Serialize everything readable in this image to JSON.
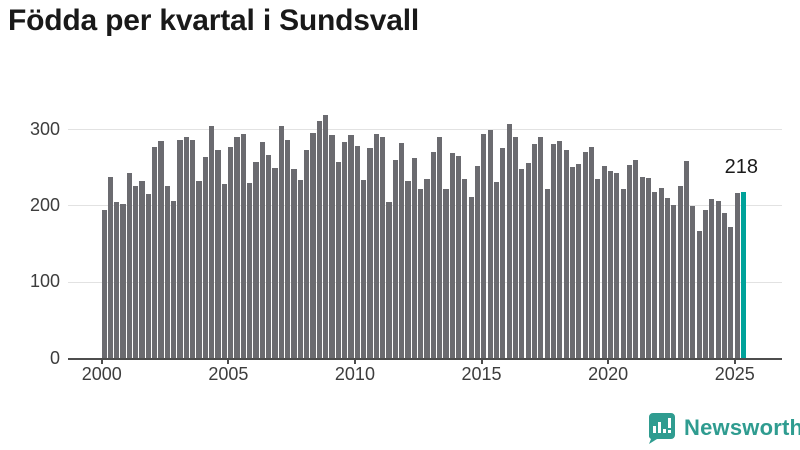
{
  "title": "Födda per kvartal i Sundsvall",
  "chart_data": {
    "type": "bar",
    "title": "Födda per kvartal i Sundsvall",
    "xlabel": "",
    "ylabel": "",
    "ylim": [
      0,
      325
    ],
    "yticks": [
      0,
      100,
      200,
      300
    ],
    "xticks": [
      "2000",
      "2005",
      "2010",
      "2015",
      "2020",
      "2025"
    ],
    "grid": "horizontal",
    "x": [
      "2000 Q1",
      "2000 Q2",
      "2000 Q3",
      "2000 Q4",
      "2001 Q1",
      "2001 Q2",
      "2001 Q3",
      "2001 Q4",
      "2002 Q1",
      "2002 Q2",
      "2002 Q3",
      "2002 Q4",
      "2003 Q1",
      "2003 Q2",
      "2003 Q3",
      "2003 Q4",
      "2004 Q1",
      "2004 Q2",
      "2004 Q3",
      "2004 Q4",
      "2005 Q1",
      "2005 Q2",
      "2005 Q3",
      "2005 Q4",
      "2006 Q1",
      "2006 Q2",
      "2006 Q3",
      "2006 Q4",
      "2007 Q1",
      "2007 Q2",
      "2007 Q3",
      "2007 Q4",
      "2008 Q1",
      "2008 Q2",
      "2008 Q3",
      "2008 Q4",
      "2009 Q1",
      "2009 Q2",
      "2009 Q3",
      "2009 Q4",
      "2010 Q1",
      "2010 Q2",
      "2010 Q3",
      "2010 Q4",
      "2011 Q1",
      "2011 Q2",
      "2011 Q3",
      "2011 Q4",
      "2012 Q1",
      "2012 Q2",
      "2012 Q3",
      "2012 Q4",
      "2013 Q1",
      "2013 Q2",
      "2013 Q3",
      "2013 Q4",
      "2014 Q1",
      "2014 Q2",
      "2014 Q3",
      "2014 Q4",
      "2015 Q1",
      "2015 Q2",
      "2015 Q3",
      "2015 Q4",
      "2016 Q1",
      "2016 Q2",
      "2016 Q3",
      "2016 Q4",
      "2017 Q1",
      "2017 Q2",
      "2017 Q3",
      "2017 Q4",
      "2018 Q1",
      "2018 Q2",
      "2018 Q3",
      "2018 Q4",
      "2019 Q1",
      "2019 Q2",
      "2019 Q3",
      "2019 Q4",
      "2020 Q1",
      "2020 Q2",
      "2020 Q3",
      "2020 Q4",
      "2021 Q1",
      "2021 Q2",
      "2021 Q3",
      "2021 Q4",
      "2022 Q1",
      "2022 Q2",
      "2022 Q3",
      "2022 Q4",
      "2023 Q1",
      "2023 Q2",
      "2023 Q3",
      "2023 Q4",
      "2024 Q1",
      "2024 Q2",
      "2024 Q3",
      "2024 Q4",
      "2025 Q1",
      "2025 Q2"
    ],
    "values": [
      194,
      237,
      205,
      202,
      242,
      225,
      232,
      215,
      276,
      284,
      226,
      206,
      285,
      290,
      285,
      232,
      263,
      304,
      272,
      228,
      276,
      289,
      293,
      229,
      257,
      283,
      266,
      249,
      304,
      286,
      247,
      233,
      273,
      295,
      311,
      318,
      292,
      257,
      283,
      292,
      278,
      233,
      275,
      294,
      290,
      205,
      259,
      282,
      232,
      262,
      221,
      234,
      270,
      289,
      222,
      268,
      265,
      235,
      211,
      251,
      294,
      299,
      231,
      275,
      306,
      290,
      248,
      256,
      281,
      289,
      221,
      281,
      284,
      273,
      250,
      254,
      270,
      276,
      234,
      252,
      245,
      242,
      221,
      253,
      259,
      237,
      236,
      218,
      223,
      209,
      201,
      225,
      258,
      199,
      166,
      194,
      208,
      206,
      190,
      171,
      216,
      218
    ],
    "colors": {
      "bar": "#6b6b70",
      "highlight": "#00a29a"
    },
    "highlight_index": 101,
    "annotation": {
      "text": "218"
    }
  },
  "logo": {
    "text": "Newsworthy",
    "color": "#2f9c90"
  }
}
